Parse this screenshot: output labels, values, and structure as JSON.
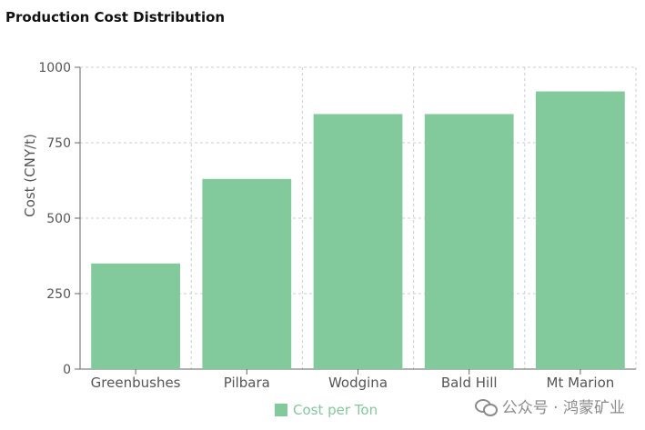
{
  "chart_data": {
    "type": "bar",
    "title": "Production Cost Distribution",
    "xlabel": "",
    "ylabel": "Cost (CNY/t)",
    "categories": [
      "Greenbushes",
      "Pilbara",
      "Wodgina",
      "Bald Hill",
      "Mt Marion"
    ],
    "series": [
      {
        "name": "Cost per Ton",
        "values": [
          350,
          630,
          845,
          845,
          920
        ],
        "color": "#82c99b"
      }
    ],
    "ylim": [
      0,
      1000
    ],
    "yticks": [
      0,
      250,
      500,
      750,
      1000
    ],
    "grid": true,
    "legend_position": "bottom-center"
  },
  "watermark": {
    "icon": "wechat-icon",
    "text": "公众号 · 鸿蒙矿业"
  }
}
